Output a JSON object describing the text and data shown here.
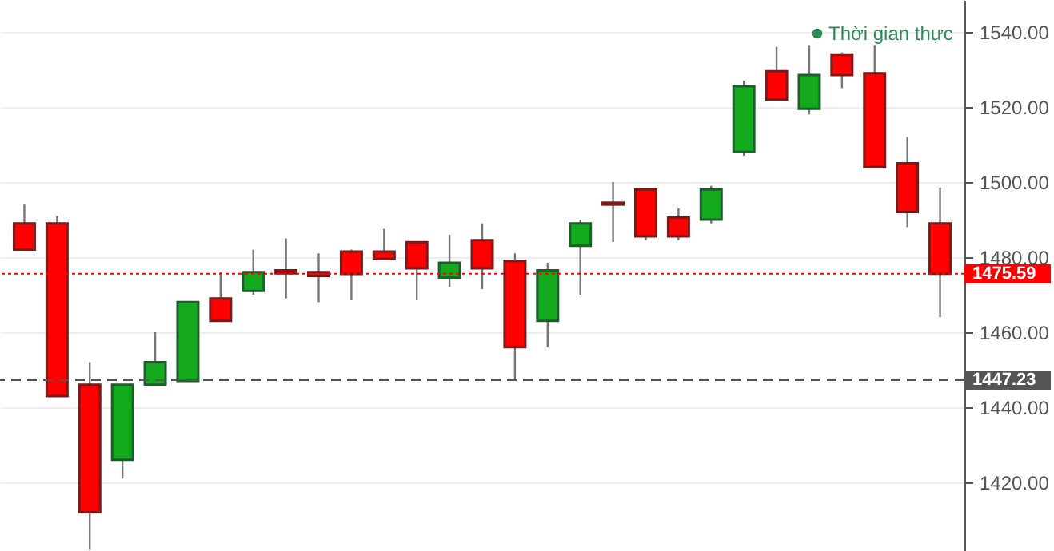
{
  "chart_data": {
    "type": "candlestick",
    "categories": [
      null,
      null,
      null,
      null,
      null,
      null,
      null,
      null,
      null,
      null,
      null,
      null,
      null,
      null,
      null,
      null,
      null,
      null,
      null,
      null,
      null,
      null,
      null,
      null,
      null,
      null,
      null,
      null,
      null
    ],
    "ohlc": [
      [
        1489,
        1494,
        1482,
        1482
      ],
      [
        1489,
        1491,
        1443,
        1443
      ],
      [
        1446,
        1452,
        1402,
        1412
      ],
      [
        1426,
        1446,
        1421,
        1446
      ],
      [
        1446,
        1460,
        1446,
        1452
      ],
      [
        1447,
        1468,
        1447,
        1468
      ],
      [
        1469,
        1476,
        1463,
        1463
      ],
      [
        1471,
        1482,
        1470,
        1476
      ],
      [
        1476.5,
        1485,
        1469,
        1475.7
      ],
      [
        1476,
        1481,
        1468,
        1475
      ],
      [
        1481.5,
        1482,
        1468.5,
        1475.5
      ],
      [
        1481.5,
        1487.5,
        1479.5,
        1479.5
      ],
      [
        1484,
        1484,
        1468.5,
        1477
      ],
      [
        1474.5,
        1486,
        1472,
        1478.5
      ],
      [
        1484.5,
        1489,
        1471.5,
        1477
      ],
      [
        1479,
        1481,
        1447,
        1456
      ],
      [
        1463,
        1478.5,
        1456,
        1476.5
      ],
      [
        1483,
        1490,
        1470,
        1489
      ],
      [
        1494.5,
        1500,
        1484,
        1494
      ],
      [
        1498,
        1498,
        1484.5,
        1485.5
      ],
      [
        1490.5,
        1493,
        1484.5,
        1485.5
      ],
      [
        1490,
        1499,
        1489,
        1498
      ],
      [
        1508,
        1527,
        1507,
        1525.5
      ],
      [
        1529.5,
        1536,
        1522,
        1522
      ],
      [
        1519.5,
        1536.5,
        1518,
        1528.5
      ],
      [
        1534,
        1534.5,
        1525,
        1528.5
      ],
      [
        1529,
        1536.5,
        1504,
        1504
      ],
      [
        1505,
        1512,
        1488,
        1492
      ],
      [
        1489,
        1498.5,
        1464,
        1475.59
      ]
    ],
    "colors": [
      "#ff0000",
      "#ff0000",
      "#ff0000",
      "#13aa1d",
      "#13aa1d",
      "#13aa1d",
      "#ff0000",
      "#13aa1d",
      "#ff0000",
      "#ff0000",
      "#ff0000",
      "#ff0000",
      "#ff0000",
      "#13aa1d",
      "#ff0000",
      "#ff0000",
      "#13aa1d",
      "#13aa1d",
      "#ff0000",
      "#ff0000",
      "#ff0000",
      "#13aa1d",
      "#13aa1d",
      "#ff0000",
      "#13aa1d",
      "#ff0000",
      "#ff0000",
      "#ff0000",
      "#ff0000"
    ],
    "ylim": [
      1401.7,
      1548.5
    ],
    "yticks": [
      {
        "value": 1420,
        "label": "1420.00"
      },
      {
        "value": 1440,
        "label": "1440.00"
      },
      {
        "value": 1460,
        "label": "1460.00"
      },
      {
        "value": 1480,
        "label": "1480.00"
      },
      {
        "value": 1500,
        "label": "1500.00"
      },
      {
        "value": 1520,
        "label": "1520.00"
      },
      {
        "value": 1540,
        "label": "1540.00"
      }
    ],
    "ref_lines": [
      {
        "axis": "y",
        "value": 1475.59,
        "label": "1475.59",
        "color": "#ff0000",
        "line_style": "dotted"
      },
      {
        "axis": "y",
        "value": 1447.23,
        "label": "1447.23",
        "color": "#555555",
        "line_style": "dashed"
      }
    ],
    "annotations": [
      "Thời gian thực"
    ],
    "grid": "y",
    "tick_labels": "y"
  }
}
